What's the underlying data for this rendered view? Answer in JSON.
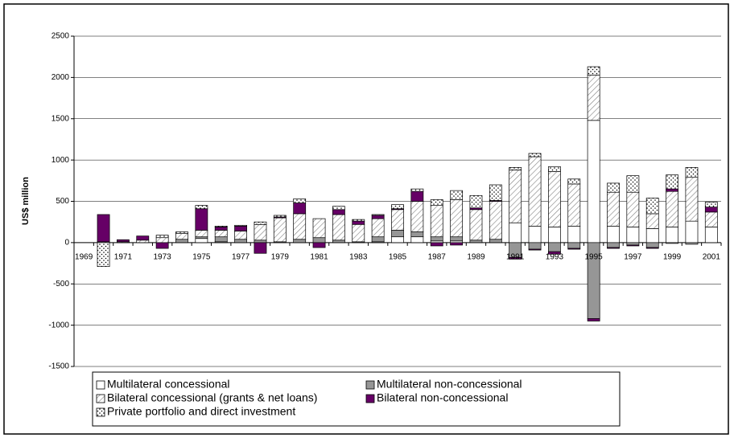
{
  "chart_data": {
    "type": "bar",
    "stacked": true,
    "y_label": "US$ million",
    "categories": [
      "1969",
      null,
      "1971",
      null,
      "1973",
      null,
      "1975",
      null,
      "1977",
      null,
      "1979",
      null,
      "1981",
      null,
      "1983",
      null,
      "1985",
      null,
      "1987",
      null,
      "1989",
      null,
      "1991",
      null,
      "1993",
      null,
      "1995",
      null,
      "1997",
      null,
      "1999",
      null,
      "2001"
    ],
    "series": [
      {
        "name": "Multilateral concessional",
        "color": "#ffffff",
        "pattern": "solid",
        "values": [
          0,
          0,
          0,
          0,
          0,
          0,
          50,
          10,
          0,
          0,
          0,
          0,
          0,
          0,
          0,
          10,
          70,
          70,
          20,
          20,
          0,
          0,
          240,
          200,
          190,
          200,
          1480,
          200,
          190,
          170,
          190,
          260,
          190
        ]
      },
      {
        "name": "Multilateral non-concessional",
        "color": "#969696",
        "pattern": "solid",
        "values": [
          0,
          0,
          0,
          0,
          0,
          40,
          20,
          60,
          40,
          30,
          10,
          40,
          60,
          30,
          10,
          60,
          80,
          60,
          50,
          50,
          30,
          40,
          -180,
          -80,
          -110,
          -70,
          -920,
          -60,
          -30,
          -60,
          -10,
          -20,
          0
        ]
      },
      {
        "name": "Bilateral concessional (grants & net loans)",
        "color": "#808080",
        "pattern": "diagonal",
        "values": [
          0,
          10,
          10,
          30,
          60,
          70,
          80,
          80,
          100,
          190,
          290,
          310,
          230,
          310,
          210,
          220,
          250,
          370,
          380,
          450,
          370,
          460,
          640,
          840,
          670,
          510,
          550,
          410,
          420,
          180,
          430,
          530,
          180
        ]
      },
      {
        "name": "Bilateral non-concessional",
        "color": "#660066",
        "pattern": "solid",
        "values": [
          0,
          330,
          25,
          50,
          -70,
          0,
          260,
          40,
          60,
          -130,
          10,
          130,
          -60,
          60,
          40,
          40,
          10,
          120,
          -40,
          -30,
          20,
          10,
          -20,
          -10,
          -30,
          -10,
          -30,
          -10,
          -10,
          -10,
          30,
          0,
          60
        ]
      },
      {
        "name": "Private portfolio and direct investment",
        "color": "#000000",
        "pattern": "dots",
        "values": [
          0,
          -290,
          0,
          0,
          30,
          20,
          40,
          10,
          10,
          30,
          20,
          50,
          0,
          40,
          20,
          10,
          50,
          30,
          70,
          110,
          150,
          190,
          30,
          40,
          60,
          60,
          100,
          110,
          200,
          190,
          170,
          120,
          60
        ]
      }
    ],
    "ylim": [
      -1500,
      2500
    ],
    "yticks": [
      -1500,
      -1000,
      -500,
      0,
      500,
      1000,
      1500,
      2000,
      2500
    ],
    "grid": true
  }
}
